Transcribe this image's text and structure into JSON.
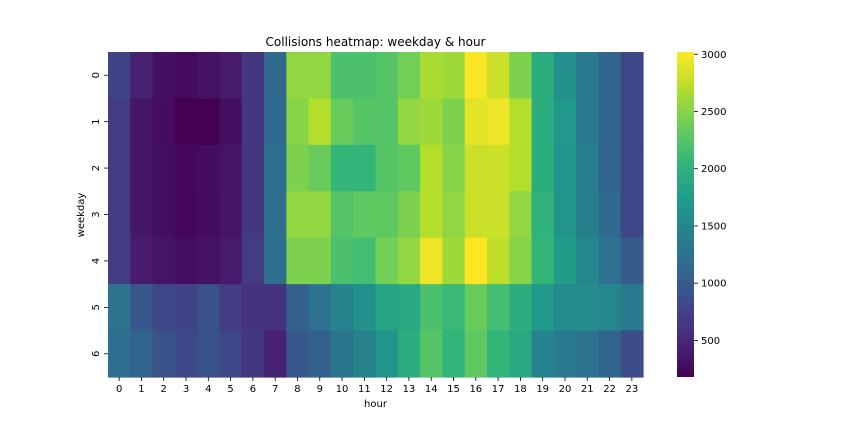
{
  "chart_data": {
    "type": "heatmap",
    "title": "Collisions heatmap: weekday & hour",
    "xlabel": "hour",
    "ylabel": "weekday",
    "x_categories": [
      "0",
      "1",
      "2",
      "3",
      "4",
      "5",
      "6",
      "7",
      "8",
      "9",
      "10",
      "11",
      "12",
      "13",
      "14",
      "15",
      "16",
      "17",
      "18",
      "19",
      "20",
      "21",
      "22",
      "23"
    ],
    "y_categories": [
      "0",
      "1",
      "2",
      "3",
      "4",
      "5",
      "6"
    ],
    "colorbar": {
      "colormap": "viridis",
      "vmin": 180,
      "vmax": 3020,
      "ticks": [
        500,
        1000,
        1500,
        2000,
        2500,
        3000
      ]
    },
    "values": [
      [
        750,
        450,
        300,
        250,
        320,
        380,
        650,
        1150,
        2550,
        2550,
        2200,
        2200,
        2250,
        2400,
        2650,
        2600,
        3000,
        2800,
        2450,
        1950,
        1600,
        1350,
        1100,
        800
      ],
      [
        700,
        350,
        280,
        180,
        180,
        300,
        650,
        1150,
        2500,
        2700,
        2350,
        2250,
        2250,
        2550,
        2600,
        2450,
        2900,
        2950,
        2700,
        1950,
        1700,
        1350,
        1100,
        780
      ],
      [
        700,
        350,
        290,
        240,
        280,
        330,
        650,
        1200,
        2450,
        2350,
        2050,
        2050,
        2250,
        2300,
        2700,
        2500,
        2800,
        2800,
        2700,
        1950,
        1650,
        1400,
        1100,
        780
      ],
      [
        700,
        360,
        290,
        230,
        280,
        340,
        650,
        1200,
        2550,
        2550,
        2250,
        2300,
        2300,
        2450,
        2700,
        2550,
        2800,
        2800,
        2550,
        2000,
        1650,
        1400,
        1150,
        800
      ],
      [
        700,
        400,
        330,
        290,
        320,
        380,
        700,
        1200,
        2450,
        2450,
        2200,
        2150,
        2400,
        2550,
        2950,
        2600,
        3020,
        2750,
        2500,
        2050,
        1750,
        1500,
        1250,
        1000
      ],
      [
        1250,
        950,
        800,
        750,
        900,
        700,
        600,
        600,
        1050,
        1250,
        1450,
        1600,
        1850,
        1900,
        2200,
        2100,
        2350,
        2150,
        1950,
        1700,
        1550,
        1550,
        1500,
        1350
      ],
      [
        1200,
        1100,
        900,
        800,
        900,
        800,
        650,
        450,
        950,
        1050,
        1300,
        1450,
        1650,
        1950,
        2250,
        2050,
        2300,
        2050,
        1900,
        1450,
        1350,
        1250,
        1100,
        850
      ]
    ]
  }
}
